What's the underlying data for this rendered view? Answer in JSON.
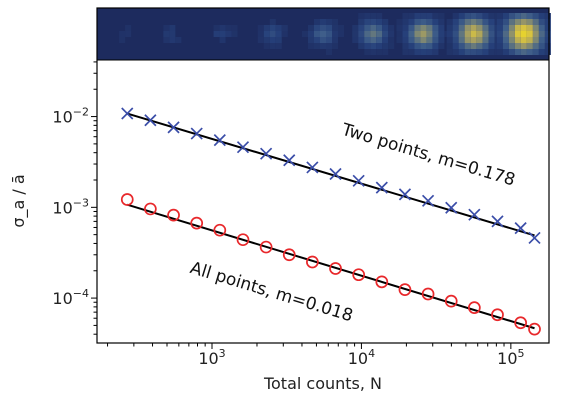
{
  "chart_data": {
    "type": "scatter",
    "xlabel": "Total counts, N",
    "ylabel": "σ_a / ā",
    "xscale": "log",
    "yscale": "log",
    "xlim": [
      170,
      180000
    ],
    "ylim": [
      3.2e-05,
      0.042
    ],
    "x_ticks": [
      {
        "value": 1000,
        "base": "10",
        "exp": "3"
      },
      {
        "value": 10000,
        "base": "10",
        "exp": "4"
      },
      {
        "value": 100000,
        "base": "10",
        "exp": "5"
      }
    ],
    "y_ticks": [
      {
        "value": 0.0001,
        "base": "10",
        "exp": "−4"
      },
      {
        "value": 0.001,
        "base": "10",
        "exp": "−3"
      },
      {
        "value": 0.01,
        "base": "10",
        "exp": "−2"
      }
    ],
    "grid": false,
    "series": [
      {
        "marker": "x",
        "color": "#3a4da8",
        "x": [
          271,
          387,
          553,
          790,
          1128,
          1612,
          2302,
          3288,
          4697,
          6709,
          9583,
          13689,
          19553,
          27930,
          39895,
          56985,
          81398,
          116269,
          144000
        ],
        "y": [
          0.0108,
          0.0091,
          0.0076,
          0.0065,
          0.0055,
          0.0046,
          0.0039,
          0.0033,
          0.00275,
          0.00233,
          0.00196,
          0.00165,
          0.00139,
          0.00118,
          0.00099,
          0.00083,
          0.0007,
          0.00059,
          0.00046
        ],
        "fit": {
          "x": [
            271,
            144000
          ],
          "y": [
            0.0108,
            0.00049
          ]
        },
        "annotation": "Two points, m=0.178"
      },
      {
        "marker": "o",
        "color": "#e8282b",
        "x": [
          271,
          387,
          553,
          790,
          1128,
          1612,
          2302,
          3288,
          4697,
          6709,
          9583,
          13689,
          19553,
          27930,
          39895,
          56985,
          81398,
          116269,
          144000
        ],
        "y": [
          0.00122,
          0.00096,
          0.00082,
          0.00067,
          0.00056,
          0.00044,
          0.000365,
          0.0003,
          0.00025,
          0.000212,
          0.000181,
          0.000151,
          0.000124,
          0.000111,
          9.25e-05,
          7.85e-05,
          6.55e-05,
          5.35e-05,
          4.55e-05
        ],
        "fit": {
          "x": [
            271,
            144000
          ],
          "y": [
            0.00107,
            4.65e-05
          ]
        },
        "annotation": "All points, m=0.018"
      }
    ],
    "inset": {
      "colormap": [
        "#1d2b5e",
        "#26407a",
        "#3f5f8a",
        "#6f7f7a",
        "#a8a060",
        "#d8c440",
        "#f6e11c"
      ],
      "frames": [
        0.04,
        0.09,
        0.14,
        0.22,
        0.32,
        0.45,
        0.6,
        0.75,
        0.9
      ]
    }
  }
}
